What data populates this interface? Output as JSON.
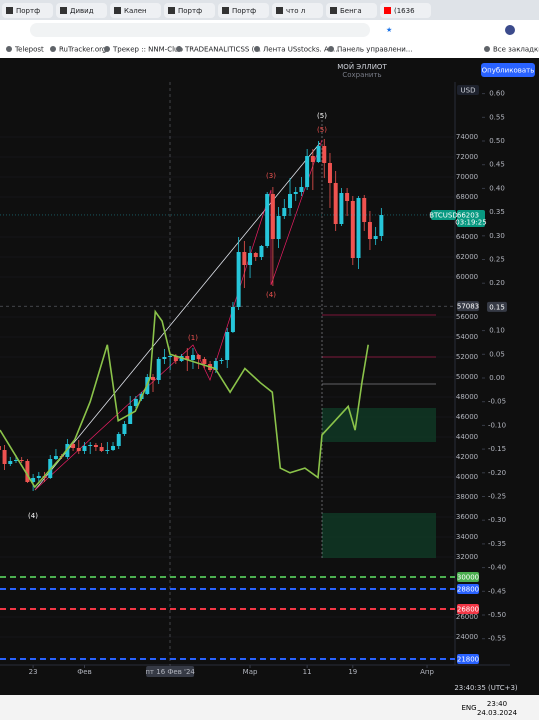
{
  "browser": {
    "tabs": [
      "Портф",
      "Дивид",
      "Кален",
      "Портф",
      "Портф",
      "что л",
      "Бенга",
      "(1636"
    ],
    "bookmarks": [
      "Telepost",
      "RuTracker.org",
      "Трекер :: NNM-Club",
      "TRADEANALITICSS (...",
      "Лента USstocks. Ак...",
      "Панель управлени...",
      "Все закладки"
    ]
  },
  "toolbar": {
    "layout_name": "МОЙ ЭЛЛИОТ",
    "save_state": "Сохранить",
    "publish": "Опубликовать"
  },
  "chart_data": {
    "type": "candlestick",
    "currency": "USD",
    "symbol": "BTCUSD",
    "up_color": "#26c6da",
    "down_color": "#ef5350",
    "xlim": [
      0.2,
      79.9
    ],
    "xticks": [
      {
        "value": 6,
        "label": "23"
      },
      {
        "value": 15,
        "label": "Фев"
      },
      {
        "value": 30,
        "label": "пт 16 Фев '24"
      },
      {
        "value": 44,
        "label": "Мар"
      },
      {
        "value": 54,
        "label": "11"
      },
      {
        "value": 62,
        "label": "19"
      },
      {
        "value": 75,
        "label": "Апр"
      }
    ],
    "ylim": [
      21200,
      79500
    ],
    "yticks": [
      24000,
      26000,
      32000,
      34000,
      36000,
      38000,
      40000,
      42000,
      44000,
      46000,
      48000,
      50000,
      52000,
      54000,
      56000,
      60000,
      62000,
      64000,
      68000,
      70000,
      72000,
      74000
    ],
    "y2lim": [
      -0.6055,
      0.6245
    ],
    "y2ticks": [
      {
        "value": 0.6,
        "label": "0.60"
      },
      0.55,
      {
        "value": 0.5,
        "label": "0.50"
      },
      0.45,
      {
        "value": 0.4,
        "label": "0.40"
      },
      0.35,
      {
        "value": 0.3,
        "label": "0.30"
      },
      0.25,
      {
        "value": 0.2,
        "label": "0.20"
      },
      {
        "value": 0.1,
        "label": "0.10"
      },
      0.05,
      {
        "value": 0,
        "label": "0.00"
      },
      -0.05,
      {
        "value": -0.1,
        "label": "-0.10"
      },
      -0.15,
      {
        "value": -0.2,
        "label": "-0.20"
      },
      -0.25,
      {
        "value": -0.3,
        "label": "-0.30"
      },
      -0.35,
      {
        "value": -0.4,
        "label": "-0.40"
      },
      -0.45,
      {
        "value": -0.5,
        "label": "-0.50"
      },
      -0.55
    ],
    "open": [
      43100,
      42700,
      41300,
      41600,
      41700,
      41600,
      39500,
      39900,
      40100,
      39900,
      41800,
      42100,
      42000,
      43300,
      42900,
      42600,
      43100,
      43200,
      43000,
      42600,
      42700,
      43100,
      44300,
      45300,
      47100,
      47800,
      48300,
      50000,
      49700,
      51800,
      52000,
      52100,
      51600,
      52100,
      51700,
      52200,
      51800,
      51300,
      50700,
      51600,
      51700,
      54500,
      57000,
      62500,
      61200,
      62400,
      62000,
      63100,
      68300,
      63800,
      66100,
      66900,
      68300,
      68500,
      69000,
      72100,
      71500,
      73100,
      71400,
      69400,
      65300,
      68400,
      67600,
      61900,
      67900,
      65500,
      63800,
      64100
    ],
    "high": [
      43500,
      43200,
      42000,
      42200,
      42000,
      41800,
      40300,
      40500,
      40500,
      42200,
      42800,
      42300,
      43800,
      43600,
      43700,
      43500,
      43500,
      43400,
      43400,
      43500,
      43500,
      44500,
      45600,
      48100,
      48100,
      48500,
      50300,
      50300,
      52000,
      52800,
      52500,
      52300,
      52300,
      52900,
      52900,
      52300,
      52000,
      51600,
      51900,
      51900,
      54900,
      57500,
      64000,
      63600,
      63100,
      62500,
      63200,
      68500,
      69000,
      67000,
      67800,
      69900,
      69000,
      70000,
      72800,
      72800,
      73600,
      73800,
      72400,
      70600,
      68900,
      68900,
      68100,
      68100,
      68200,
      66600,
      65000,
      66900
    ],
    "low": [
      42200,
      40700,
      41100,
      41400,
      41400,
      39400,
      38600,
      39500,
      39500,
      39800,
      41700,
      41800,
      41800,
      42600,
      42300,
      42300,
      42300,
      42600,
      42500,
      42300,
      42600,
      42800,
      44100,
      45300,
      46900,
      47600,
      48200,
      48500,
      49300,
      51300,
      50700,
      51300,
      51500,
      50600,
      50800,
      50800,
      50900,
      50500,
      50400,
      51300,
      50900,
      54400,
      56700,
      58900,
      59900,
      61600,
      61700,
      62900,
      59100,
      62900,
      65800,
      66100,
      67600,
      68100,
      68700,
      68700,
      71400,
      69900,
      66900,
      64600,
      65100,
      66100,
      61200,
      60800,
      64600,
      62700,
      63200,
      63600
    ],
    "close": [
      42700,
      41300,
      41600,
      41700,
      41600,
      39500,
      39900,
      40100,
      39900,
      41800,
      42100,
      42000,
      43300,
      42900,
      42600,
      43100,
      43200,
      43000,
      42600,
      42700,
      43100,
      44300,
      45300,
      47100,
      47800,
      48300,
      50000,
      49700,
      51800,
      52000,
      52100,
      51600,
      52100,
      51700,
      52200,
      51800,
      51300,
      50700,
      51600,
      51700,
      54500,
      57000,
      62500,
      61200,
      62400,
      62000,
      63100,
      68300,
      63800,
      66100,
      66900,
      68300,
      68500,
      69000,
      72100,
      71500,
      73100,
      71400,
      69400,
      65300,
      68400,
      67600,
      61900,
      67900,
      65500,
      63800,
      64100,
      66200
    ],
    "oscillator": {
      "axis": "y2",
      "color": "#8bc34a",
      "x": [
        0.2,
        6.3,
        10.7,
        13.3,
        16,
        19,
        20.9,
        23.9,
        26.5,
        27.4,
        28.6,
        30,
        32.6,
        35.2,
        37.9,
        40.5,
        43.1,
        45.8,
        47.9,
        49.3,
        51,
        53.6,
        55.9,
        56.6,
        58.9,
        61.2,
        62.4,
        63.6,
        64.7
      ],
      "values": [
        -0.11,
        -0.23,
        -0.17,
        -0.13,
        -0.05,
        0.07,
        -0.09,
        -0.07,
        0,
        0.14,
        0.12,
        0.05,
        0.04,
        0.03,
        0.02,
        -0.03,
        0.02,
        -0.01,
        -0.03,
        -0.19,
        -0.2,
        -0.19,
        -0.21,
        -0.12,
        -0.09,
        -0.06,
        -0.11,
        -0.01,
        0.07
      ]
    },
    "levels": [
      {
        "value": 30000,
        "color": "#4caf50"
      },
      {
        "value": 28800,
        "color": "#2962ff"
      },
      {
        "value": 26800,
        "color": "#f23645"
      },
      {
        "value": 21800,
        "color": "#2962ff"
      }
    ],
    "last_price": 66203,
    "countdown": "03:19:25",
    "crosshair_price": 57083,
    "crosshair_oscillator": 0.15,
    "annotations": [
      "(5)",
      "(5)",
      "(3)",
      "(4)",
      "(1)",
      "(4)"
    ]
  },
  "status": {
    "clock": "23:40:35 (UTC+3)"
  },
  "taskbar": {
    "lang": "ENG",
    "time": "23:40",
    "date": "24.03.2024"
  }
}
